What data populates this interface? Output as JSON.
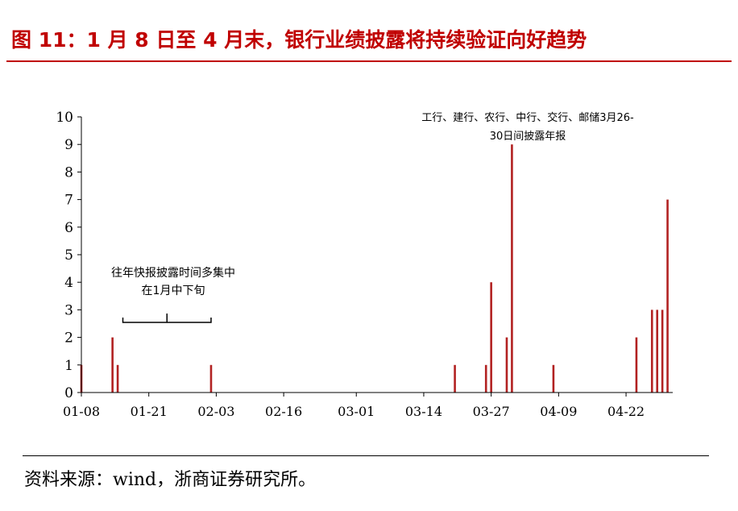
{
  "figure": {
    "title": "图 11：1 月 8 日至 4 月末，银行业绩披露将持续验证向好趋势",
    "source": "资料来源：wind，浙商证券研究所。"
  },
  "colors": {
    "title": "#c00000",
    "bar": "#b22222",
    "axis": "#000000",
    "text": "#000000"
  },
  "chart_data": {
    "type": "bar",
    "x_axis": {
      "kind": "date",
      "start": "01-08",
      "end": "05-01",
      "tick_labels": [
        "01-08",
        "01-21",
        "02-03",
        "02-16",
        "03-01",
        "03-14",
        "03-27",
        "04-09",
        "04-22"
      ]
    },
    "y_axis": {
      "ylim": [
        0,
        10
      ],
      "ticks": [
        0,
        1,
        2,
        3,
        4,
        5,
        6,
        7,
        8,
        9,
        10
      ]
    },
    "grid": false,
    "xlabel": "",
    "ylabel": "",
    "points": [
      {
        "date": "01-08",
        "value": 1
      },
      {
        "date": "01-14",
        "value": 2
      },
      {
        "date": "01-15",
        "value": 1
      },
      {
        "date": "02-02",
        "value": 1
      },
      {
        "date": "03-20",
        "value": 1
      },
      {
        "date": "03-26",
        "value": 1
      },
      {
        "date": "03-27",
        "value": 4
      },
      {
        "date": "03-30",
        "value": 2
      },
      {
        "date": "03-31",
        "value": 9
      },
      {
        "date": "04-08",
        "value": 1
      },
      {
        "date": "04-24",
        "value": 2
      },
      {
        "date": "04-27",
        "value": 3
      },
      {
        "date": "04-28",
        "value": 3
      },
      {
        "date": "04-29",
        "value": 3
      },
      {
        "date": "04-30",
        "value": 7
      }
    ],
    "annotations": [
      {
        "lines": [
          "往年快报披露时间多集中",
          "在1月中下旬"
        ],
        "bracket_from": "01-16",
        "bracket_to": "02-02"
      },
      {
        "lines": [
          "工行、建行、农行、中行、交行、邮储3月26-",
          "30日间披露年报"
        ],
        "pointer_at": "03-31"
      }
    ]
  }
}
